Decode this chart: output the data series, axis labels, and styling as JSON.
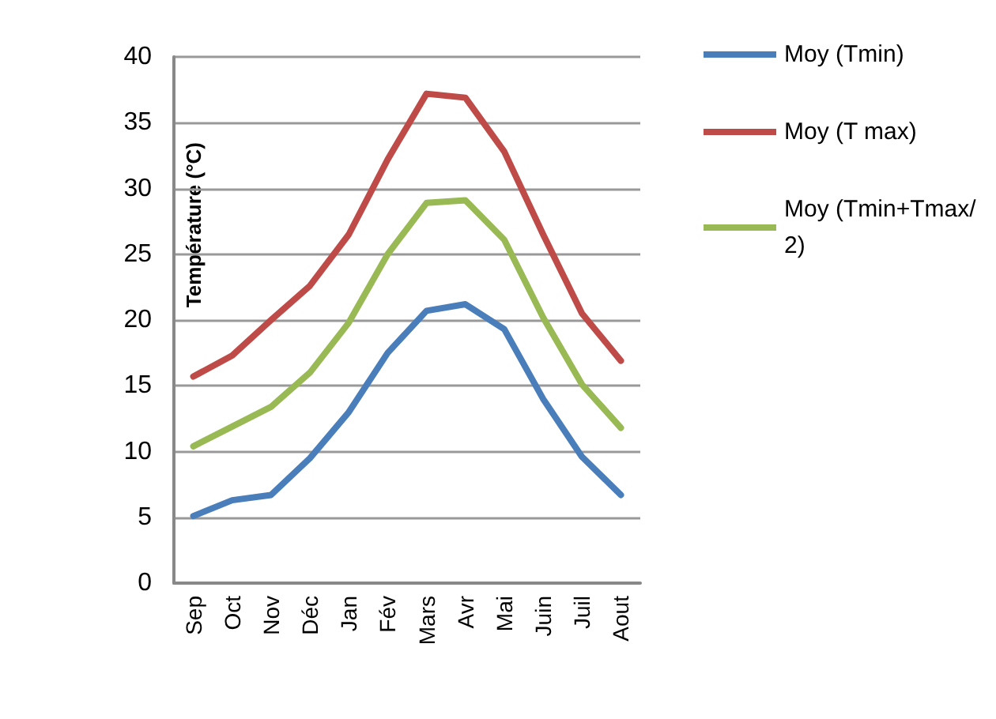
{
  "chart_data": {
    "type": "line",
    "ylabel": "Température (°C)",
    "categories": [
      "Sep",
      "Oct",
      "Nov",
      "Déc",
      "Jan",
      "Fév",
      "Mars",
      "Avr",
      "Mai",
      "Juin",
      "Juil",
      "Aout"
    ],
    "series": [
      {
        "name": "Moy (Tmin)",
        "color": "#4a7ebb",
        "values": [
          5.1,
          6.3,
          6.7,
          9.5,
          13,
          17.5,
          20.7,
          21.2,
          19.3,
          14,
          9.6,
          6.7
        ]
      },
      {
        "name": "Moy (T max)",
        "color": "#be4b48",
        "values": [
          15.7,
          17.3,
          20,
          22.6,
          26.5,
          32.2,
          37.2,
          36.9,
          32.8,
          26.5,
          20.5,
          16.9
        ]
      },
      {
        "name": "Moy (Tmin+Tmax/2)",
        "color": "#98b954",
        "values": [
          10.4,
          11.9,
          13.4,
          16,
          19.8,
          25,
          28.9,
          29.1,
          26.1,
          20.2,
          15.1,
          11.8
        ]
      }
    ],
    "ylim": [
      0,
      40
    ],
    "yticks": [
      0,
      5,
      10,
      15,
      20,
      25,
      30,
      35,
      40
    ],
    "grid": "y",
    "legend": "right",
    "marker": "none",
    "line_style": "solid"
  }
}
